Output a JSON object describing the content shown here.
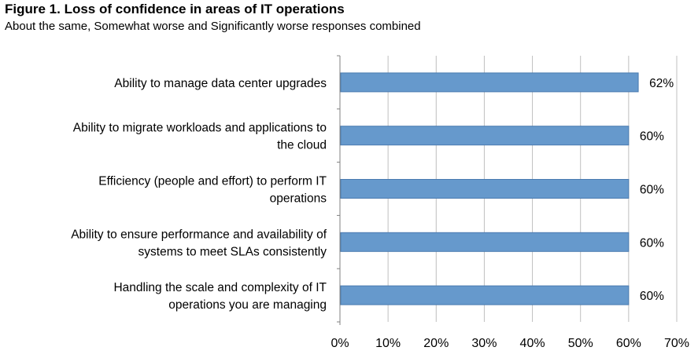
{
  "chart_data": {
    "type": "bar",
    "orientation": "horizontal",
    "title": "Figure 1. Loss of confidence in areas of IT operations",
    "subtitle": "About the same, Somewhat worse and Significantly worse responses combined",
    "categories": [
      [
        "Ability to manage data center upgrades"
      ],
      [
        "Ability to migrate workloads and applications to",
        "the cloud"
      ],
      [
        "Efficiency (people and effort) to perform IT",
        "operations"
      ],
      [
        "Ability to ensure performance and availability of",
        "systems to meet SLAs consistently"
      ],
      [
        "Handling the scale and complexity of IT",
        "operations you are managing"
      ]
    ],
    "values": [
      62,
      60,
      60,
      60,
      60
    ],
    "value_labels": [
      "62%",
      "60%",
      "60%",
      "60%",
      "60%"
    ],
    "xlim": [
      0,
      70
    ],
    "x_ticks": [
      0,
      10,
      20,
      30,
      40,
      50,
      60,
      70
    ],
    "x_tick_labels": [
      "0%",
      "10%",
      "20%",
      "30%",
      "40%",
      "50%",
      "60%",
      "70%"
    ],
    "grid": true,
    "legend": "none",
    "bar_color": "#6699cc",
    "bar_edge_color": "#4a7bb0",
    "grid_color": "#bfbfbf"
  }
}
